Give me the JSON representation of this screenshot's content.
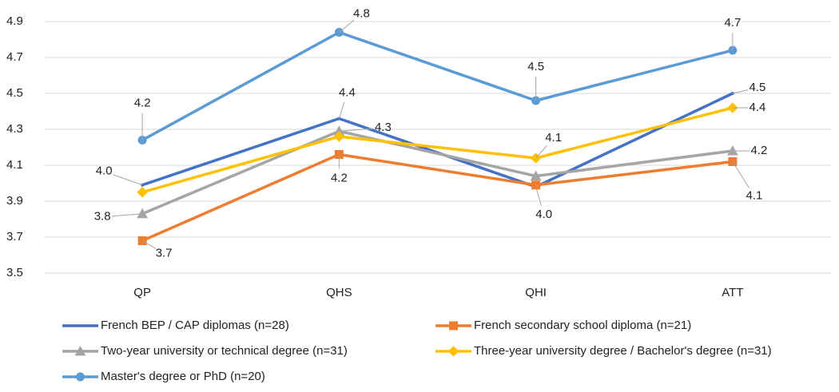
{
  "chart_data": {
    "type": "line",
    "categories": [
      "QP",
      "QHS",
      "QHI",
      "ATT"
    ],
    "ylim": [
      3.5,
      4.9
    ],
    "yticks": [
      3.5,
      3.7,
      3.9,
      4.1,
      4.3,
      4.5,
      4.7,
      4.9
    ],
    "grid": true,
    "series": [
      {
        "name": "French BEP / CAP diplomas (n=28)",
        "color": "#4472c4",
        "marker": "none",
        "values": [
          3.99,
          4.36,
          3.98,
          4.5
        ],
        "value_labels": [
          "4.0",
          "4.4",
          "4.0",
          "4.5"
        ]
      },
      {
        "name": "French secondary school diploma (n=21)",
        "color": "#ed7d31",
        "marker": "square",
        "values": [
          3.68,
          4.16,
          3.99,
          4.12
        ],
        "value_labels": [
          "3.7",
          "4.2",
          null,
          "4.1"
        ]
      },
      {
        "name": "Two-year university or technical degree (n=31)",
        "color": "#a5a5a5",
        "marker": "triangle",
        "values": [
          3.83,
          4.29,
          4.04,
          4.18
        ],
        "value_labels": [
          "3.8",
          "4.3",
          null,
          "4.2"
        ]
      },
      {
        "name": "Three-year university degree / Bachelor's degree (n=31)",
        "color": "#ffc000",
        "marker": "diamond",
        "values": [
          3.95,
          4.26,
          4.14,
          4.42
        ],
        "value_labels": [
          null,
          null,
          "4.1",
          "4.4"
        ]
      },
      {
        "name": "Master's degree or PhD (n=20)",
        "color": "#5b9bd5",
        "marker": "circle",
        "values": [
          4.24,
          4.84,
          4.46,
          4.74
        ],
        "value_labels": [
          "4.2",
          "4.8",
          "4.5",
          "4.7"
        ]
      }
    ]
  }
}
